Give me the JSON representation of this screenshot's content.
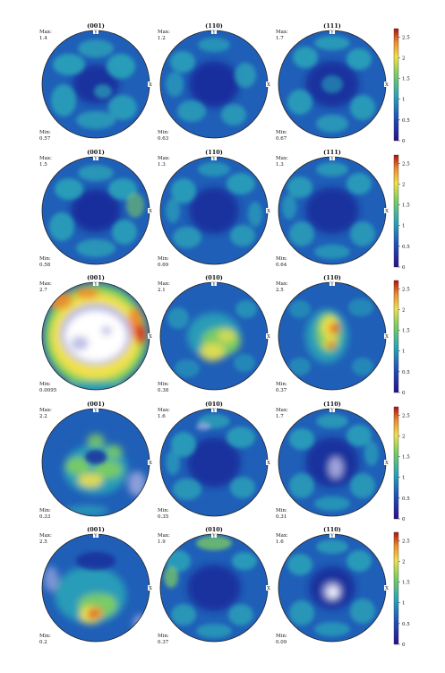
{
  "figure": {
    "rows": [
      {
        "panels": [
          {
            "title": "(001)",
            "max": "1.4",
            "min": "0.57"
          },
          {
            "title": "(110)",
            "max": "1.2",
            "min": "0.63"
          },
          {
            "title": "(111)",
            "max": "1.7",
            "min": "0.67"
          }
        ]
      },
      {
        "panels": [
          {
            "title": "(001)",
            "max": "1.5",
            "min": "0.58"
          },
          {
            "title": "(110)",
            "max": "1.3",
            "min": "0.69"
          },
          {
            "title": "(111)",
            "max": "1.3",
            "min": "0.64"
          }
        ]
      },
      {
        "panels": [
          {
            "title": "(001)",
            "max": "2.7",
            "min": "0.0095"
          },
          {
            "title": "(010)",
            "max": "2.1",
            "min": "0.38"
          },
          {
            "title": "(110)",
            "max": "2.5",
            "min": "0.37"
          }
        ]
      },
      {
        "panels": [
          {
            "title": "(001)",
            "max": "2.2",
            "min": "0.33"
          },
          {
            "title": "(010)",
            "max": "1.6",
            "min": "0.35"
          },
          {
            "title": "(110)",
            "max": "1.7",
            "min": "0.31"
          }
        ]
      },
      {
        "panels": [
          {
            "title": "(001)",
            "max": "2.5",
            "min": "0.2"
          },
          {
            "title": "(010)",
            "max": "1.9",
            "min": "0.37"
          },
          {
            "title": "(110)",
            "max": "1.6",
            "min": "0.09"
          }
        ]
      }
    ],
    "max_label": "Max:",
    "min_label": "Min:",
    "axis_y": "Y",
    "axis_x": "X",
    "colorbar_ticks": [
      "2.5",
      "2",
      "1.5",
      "1",
      "0.5",
      "0"
    ],
    "colors": {
      "base_blue": "#1f5fb8",
      "dark_blue": "#16299a",
      "teal": "#2aa3b8",
      "green": "#7fcf5f",
      "yellow": "#f0e14a",
      "orange": "#f08a2a",
      "red": "#d61f1f",
      "white": "#ffffff",
      "lavender": "#b9b9e6"
    }
  }
}
